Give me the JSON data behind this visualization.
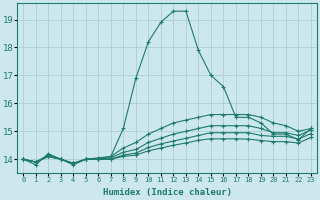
{
  "xlabel": "Humidex (Indice chaleur)",
  "background_color": "#cde8ec",
  "line_color": "#1e7b6a",
  "grid_color": "#aacdd4",
  "xlim": [
    -0.5,
    23.5
  ],
  "ylim": [
    13.5,
    19.6
  ],
  "yticks": [
    14,
    15,
    16,
    17,
    18,
    19
  ],
  "xticks": [
    0,
    1,
    2,
    3,
    4,
    5,
    6,
    7,
    8,
    9,
    10,
    11,
    12,
    13,
    14,
    15,
    16,
    17,
    18,
    19,
    20,
    21,
    22,
    23
  ],
  "lines": [
    {
      "x": [
        0,
        1,
        2,
        3,
        4,
        5,
        6,
        7,
        8,
        9,
        10,
        11,
        12,
        13,
        14,
        15,
        16,
        17,
        18,
        19,
        20,
        21,
        22,
        23
      ],
      "y": [
        14.0,
        13.8,
        14.2,
        14.0,
        13.8,
        14.0,
        14.0,
        14.1,
        15.1,
        16.9,
        18.2,
        18.9,
        19.3,
        19.3,
        17.9,
        17.0,
        16.6,
        15.5,
        15.5,
        15.3,
        14.9,
        14.9,
        14.7,
        15.1
      ]
    },
    {
      "x": [
        0,
        1,
        2,
        3,
        4,
        5,
        6,
        7,
        8,
        9,
        10,
        11,
        12,
        13,
        14,
        15,
        16,
        17,
        18,
        19,
        20,
        21,
        22,
        23
      ],
      "y": [
        14.0,
        13.9,
        14.15,
        14.0,
        13.85,
        14.0,
        14.05,
        14.1,
        14.4,
        14.6,
        14.9,
        15.1,
        15.3,
        15.4,
        15.5,
        15.6,
        15.6,
        15.6,
        15.6,
        15.5,
        15.3,
        15.2,
        15.0,
        15.1
      ]
    },
    {
      "x": [
        0,
        1,
        2,
        3,
        4,
        5,
        6,
        7,
        8,
        9,
        10,
        11,
        12,
        13,
        14,
        15,
        16,
        17,
        18,
        19,
        20,
        21,
        22,
        23
      ],
      "y": [
        14.0,
        13.9,
        14.1,
        14.0,
        13.85,
        14.0,
        14.0,
        14.05,
        14.25,
        14.35,
        14.6,
        14.75,
        14.9,
        15.0,
        15.1,
        15.2,
        15.2,
        15.2,
        15.2,
        15.1,
        14.95,
        14.95,
        14.85,
        15.05
      ]
    },
    {
      "x": [
        0,
        1,
        2,
        3,
        4,
        5,
        6,
        7,
        8,
        9,
        10,
        11,
        12,
        13,
        14,
        15,
        16,
        17,
        18,
        19,
        20,
        21,
        22,
        23
      ],
      "y": [
        14.0,
        13.9,
        14.1,
        14.0,
        13.85,
        14.0,
        14.0,
        14.0,
        14.15,
        14.22,
        14.42,
        14.55,
        14.65,
        14.75,
        14.85,
        14.95,
        14.95,
        14.95,
        14.95,
        14.85,
        14.82,
        14.82,
        14.72,
        14.92
      ]
    },
    {
      "x": [
        0,
        1,
        2,
        3,
        4,
        5,
        6,
        7,
        8,
        9,
        10,
        11,
        12,
        13,
        14,
        15,
        16,
        17,
        18,
        19,
        20,
        21,
        22,
        23
      ],
      "y": [
        14.0,
        13.9,
        14.1,
        14.0,
        13.85,
        14.0,
        14.0,
        14.0,
        14.1,
        14.15,
        14.3,
        14.4,
        14.5,
        14.58,
        14.68,
        14.73,
        14.73,
        14.73,
        14.72,
        14.67,
        14.63,
        14.63,
        14.58,
        14.78
      ]
    }
  ]
}
